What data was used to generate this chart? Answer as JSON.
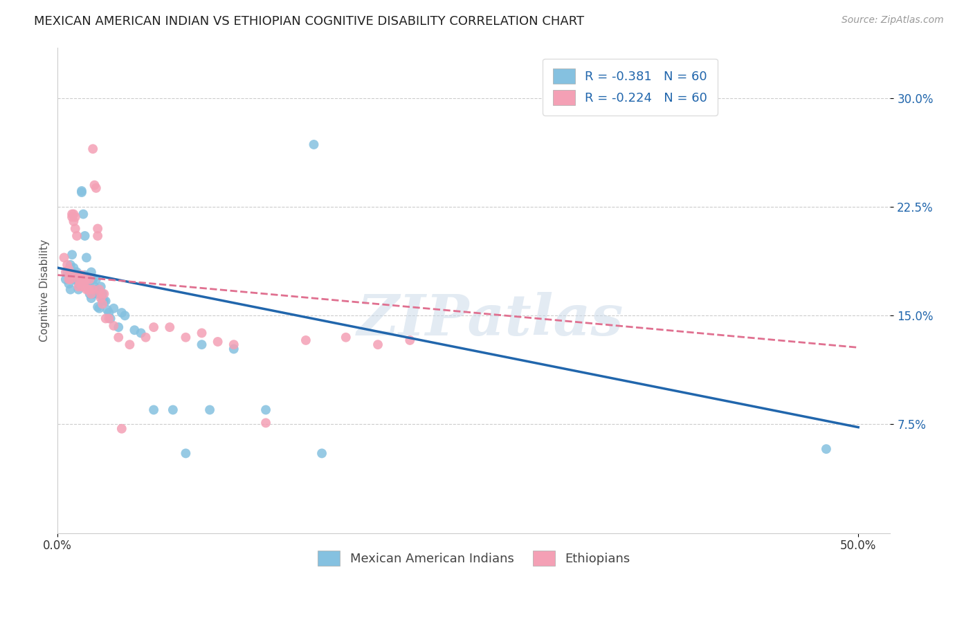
{
  "title": "MEXICAN AMERICAN INDIAN VS ETHIOPIAN COGNITIVE DISABILITY CORRELATION CHART",
  "source": "Source: ZipAtlas.com",
  "ylabel": "Cognitive Disability",
  "xlim": [
    0.0,
    0.52
  ],
  "ylim": [
    0.0,
    0.335
  ],
  "yticks": [
    0.075,
    0.15,
    0.225,
    0.3
  ],
  "ytick_labels": [
    "7.5%",
    "15.0%",
    "22.5%",
    "30.0%"
  ],
  "xticks": [
    0.0,
    0.5
  ],
  "xtick_labels": [
    "0.0%",
    "50.0%"
  ],
  "legend_labels": [
    "Mexican American Indians",
    "Ethiopians"
  ],
  "R_blue": -0.381,
  "N_blue": 60,
  "R_pink": -0.224,
  "N_pink": 60,
  "color_blue": "#85c1e0",
  "color_blue_line": "#2166ac",
  "color_pink": "#f4a0b5",
  "color_pink_line": "#e07090",
  "watermark": "ZIPatlas",
  "blue_points": [
    [
      0.005,
      0.175
    ],
    [
      0.006,
      0.18
    ],
    [
      0.007,
      0.172
    ],
    [
      0.008,
      0.185
    ],
    [
      0.008,
      0.168
    ],
    [
      0.009,
      0.192
    ],
    [
      0.009,
      0.178
    ],
    [
      0.01,
      0.183
    ],
    [
      0.01,
      0.175
    ],
    [
      0.011,
      0.178
    ],
    [
      0.011,
      0.18
    ],
    [
      0.012,
      0.175
    ],
    [
      0.012,
      0.18
    ],
    [
      0.013,
      0.168
    ],
    [
      0.013,
      0.172
    ],
    [
      0.014,
      0.175
    ],
    [
      0.015,
      0.235
    ],
    [
      0.015,
      0.236
    ],
    [
      0.016,
      0.22
    ],
    [
      0.017,
      0.205
    ],
    [
      0.017,
      0.178
    ],
    [
      0.018,
      0.173
    ],
    [
      0.018,
      0.19
    ],
    [
      0.019,
      0.173
    ],
    [
      0.02,
      0.165
    ],
    [
      0.02,
      0.17
    ],
    [
      0.021,
      0.18
    ],
    [
      0.021,
      0.162
    ],
    [
      0.022,
      0.175
    ],
    [
      0.022,
      0.165
    ],
    [
      0.023,
      0.17
    ],
    [
      0.024,
      0.168
    ],
    [
      0.024,
      0.175
    ],
    [
      0.025,
      0.156
    ],
    [
      0.025,
      0.165
    ],
    [
      0.026,
      0.155
    ],
    [
      0.027,
      0.17
    ],
    [
      0.028,
      0.165
    ],
    [
      0.028,
      0.16
    ],
    [
      0.029,
      0.16
    ],
    [
      0.03,
      0.16
    ],
    [
      0.031,
      0.154
    ],
    [
      0.032,
      0.152
    ],
    [
      0.033,
      0.148
    ],
    [
      0.035,
      0.155
    ],
    [
      0.038,
      0.142
    ],
    [
      0.04,
      0.152
    ],
    [
      0.042,
      0.15
    ],
    [
      0.048,
      0.14
    ],
    [
      0.052,
      0.138
    ],
    [
      0.06,
      0.085
    ],
    [
      0.072,
      0.085
    ],
    [
      0.08,
      0.055
    ],
    [
      0.09,
      0.13
    ],
    [
      0.095,
      0.085
    ],
    [
      0.11,
      0.127
    ],
    [
      0.13,
      0.085
    ],
    [
      0.165,
      0.055
    ],
    [
      0.16,
      0.268
    ],
    [
      0.48,
      0.058
    ]
  ],
  "pink_points": [
    [
      0.004,
      0.19
    ],
    [
      0.005,
      0.18
    ],
    [
      0.006,
      0.185
    ],
    [
      0.007,
      0.175
    ],
    [
      0.007,
      0.182
    ],
    [
      0.008,
      0.178
    ],
    [
      0.008,
      0.175
    ],
    [
      0.009,
      0.22
    ],
    [
      0.009,
      0.218
    ],
    [
      0.01,
      0.22
    ],
    [
      0.01,
      0.215
    ],
    [
      0.011,
      0.21
    ],
    [
      0.011,
      0.218
    ],
    [
      0.012,
      0.205
    ],
    [
      0.012,
      0.178
    ],
    [
      0.013,
      0.175
    ],
    [
      0.013,
      0.17
    ],
    [
      0.014,
      0.178
    ],
    [
      0.014,
      0.172
    ],
    [
      0.015,
      0.178
    ],
    [
      0.015,
      0.17
    ],
    [
      0.016,
      0.175
    ],
    [
      0.016,
      0.172
    ],
    [
      0.017,
      0.17
    ],
    [
      0.017,
      0.175
    ],
    [
      0.018,
      0.168
    ],
    [
      0.018,
      0.175
    ],
    [
      0.019,
      0.168
    ],
    [
      0.02,
      0.168
    ],
    [
      0.02,
      0.175
    ],
    [
      0.021,
      0.165
    ],
    [
      0.022,
      0.168
    ],
    [
      0.022,
      0.265
    ],
    [
      0.023,
      0.24
    ],
    [
      0.024,
      0.238
    ],
    [
      0.025,
      0.21
    ],
    [
      0.025,
      0.205
    ],
    [
      0.026,
      0.168
    ],
    [
      0.027,
      0.162
    ],
    [
      0.027,
      0.165
    ],
    [
      0.028,
      0.158
    ],
    [
      0.029,
      0.165
    ],
    [
      0.03,
      0.148
    ],
    [
      0.032,
      0.148
    ],
    [
      0.035,
      0.143
    ],
    [
      0.038,
      0.135
    ],
    [
      0.04,
      0.072
    ],
    [
      0.045,
      0.13
    ],
    [
      0.055,
      0.135
    ],
    [
      0.06,
      0.142
    ],
    [
      0.07,
      0.142
    ],
    [
      0.08,
      0.135
    ],
    [
      0.09,
      0.138
    ],
    [
      0.1,
      0.132
    ],
    [
      0.11,
      0.13
    ],
    [
      0.13,
      0.076
    ],
    [
      0.155,
      0.133
    ],
    [
      0.18,
      0.135
    ],
    [
      0.2,
      0.13
    ],
    [
      0.22,
      0.133
    ]
  ],
  "blue_line_x": [
    0.0,
    0.5
  ],
  "blue_line_y": [
    0.183,
    0.073
  ],
  "pink_line_x": [
    0.0,
    0.5
  ],
  "pink_line_y": [
    0.178,
    0.128
  ],
  "background_color": "#ffffff",
  "grid_color": "#cccccc",
  "title_fontsize": 13,
  "axis_label_fontsize": 11,
  "tick_fontsize": 12,
  "legend_fontsize": 13,
  "source_fontsize": 10
}
